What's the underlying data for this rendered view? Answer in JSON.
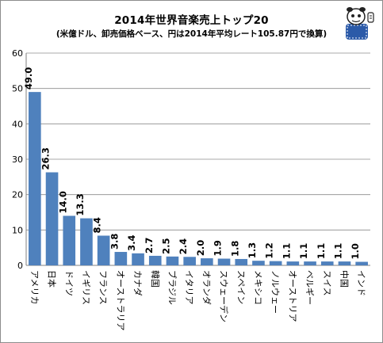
{
  "chart_data": {
    "type": "bar",
    "title": "2014年世界音楽売上トップ20",
    "subtitle": "(米億ドル、卸売価格ベース、円は2014年平均レート105.87円で換算)",
    "xlabel": "",
    "ylabel": "",
    "ylim": [
      0,
      60
    ],
    "yticks": [
      0,
      10,
      20,
      30,
      40,
      50,
      60
    ],
    "grid": true,
    "legend": "none",
    "bar_color": "#4f81bd",
    "categories": [
      "アメリカ",
      "日本",
      "ドイツ",
      "イギリス",
      "フランス",
      "オーストラリア",
      "カナダ",
      "韓国",
      "ブラジル",
      "イタリア",
      "オランダ",
      "スウェーデン",
      "スペイン",
      "メキシコ",
      "ノルウェー",
      "オーストリア",
      "ベルギー",
      "スイス",
      "中国",
      "インド"
    ],
    "values": [
      49.0,
      26.3,
      14.0,
      13.3,
      8.4,
      3.8,
      3.4,
      2.7,
      2.5,
      2.4,
      2.0,
      1.9,
      1.8,
      1.3,
      1.2,
      1.1,
      1.1,
      1.1,
      1.1,
      1.0
    ],
    "value_labels": [
      "49.0",
      "26.3",
      "14.0",
      "13.3",
      "8.4",
      "3.8",
      "3.4",
      "2.7",
      "2.5",
      "2.4",
      "2.0",
      "1.9",
      "1.8",
      "1.3",
      "1.2",
      "1.1",
      "1.1",
      "1.1",
      "1.1",
      "1.0"
    ]
  }
}
